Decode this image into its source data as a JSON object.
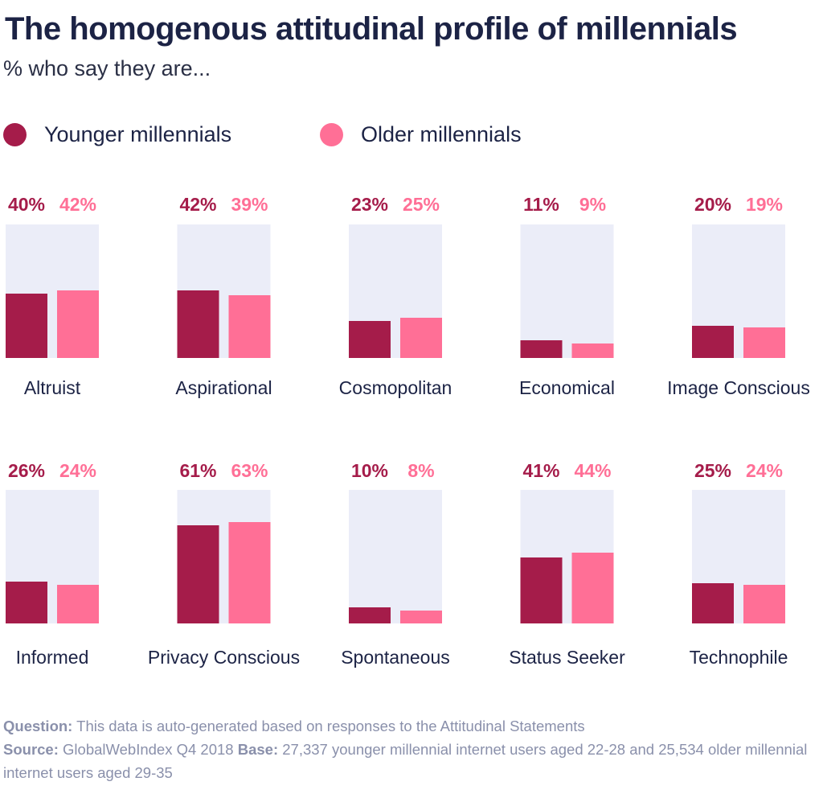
{
  "title": "The homogenous attitudinal profile of millennials",
  "subtitle": "% who say they are...",
  "colors": {
    "younger": "#a51c4a",
    "older": "#ff6f96",
    "panel": "#ebedf8",
    "text": "#1c2345"
  },
  "footer": {
    "question_label": "Question:",
    "question_text": "This data is auto-generated based on responses to the Attitudinal Statements",
    "source_label": "Source:",
    "source_text": "GlobalWebIndex Q4 2018",
    "base_label": "Base:",
    "base_text": "27,337 younger millennial internet users aged 22-28 and 25,534 older millennial internet users aged 29-35"
  },
  "chart_data": {
    "type": "bar",
    "ylim": [
      0,
      100
    ],
    "series": [
      {
        "name": "Younger millennials",
        "color": "#a51c4a",
        "values": [
          40,
          42,
          23,
          11,
          20,
          26,
          61,
          10,
          41,
          25
        ]
      },
      {
        "name": "Older millennials",
        "color": "#ff6f96",
        "values": [
          42,
          39,
          25,
          9,
          19,
          24,
          63,
          8,
          44,
          24
        ]
      }
    ],
    "categories": [
      "Altruist",
      "Aspirational",
      "Cosmopolitan",
      "Economical",
      "Image Conscious",
      "Informed",
      "Privacy Conscious",
      "Spontaneous",
      "Status Seeker",
      "Technophile"
    ],
    "value_labels_younger": [
      "40%",
      "42%",
      "23%",
      "11%",
      "20%",
      "26%",
      "61%",
      "10%",
      "41%",
      "25%"
    ],
    "value_labels_older": [
      "42%",
      "39%",
      "25%",
      "9%",
      "19%",
      "24%",
      "63%",
      "8%",
      "44%",
      "24%"
    ],
    "legend_position": "top-left"
  }
}
